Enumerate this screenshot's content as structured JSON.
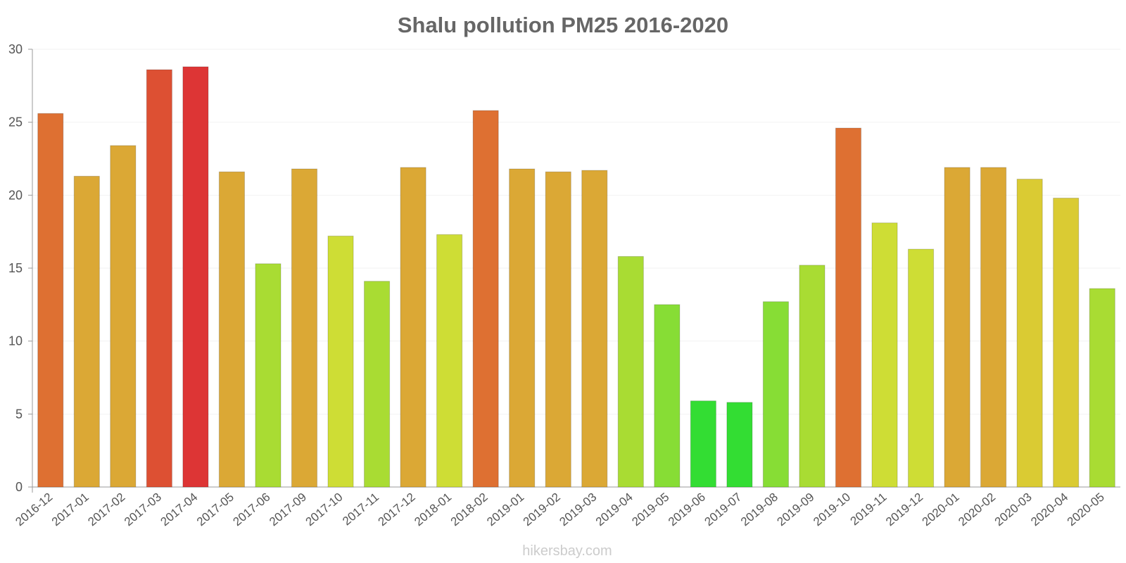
{
  "chart_data": {
    "type": "bar",
    "title": "Shalu pollution PM25 2016-2020",
    "xlabel": "",
    "ylabel": "",
    "ylim": [
      0,
      30
    ],
    "yticks": [
      0,
      5,
      10,
      15,
      20,
      25,
      30
    ],
    "categories": [
      "2016-12",
      "2017-01",
      "2017-02",
      "2017-03",
      "2017-04",
      "2017-05",
      "2017-06",
      "2017-09",
      "2017-10",
      "2017-11",
      "2017-12",
      "2018-01",
      "2018-02",
      "2019-01",
      "2019-02",
      "2019-03",
      "2019-04",
      "2019-05",
      "2019-06",
      "2019-07",
      "2019-08",
      "2019-09",
      "2019-10",
      "2019-11",
      "2019-12",
      "2020-01",
      "2020-02",
      "2020-03",
      "2020-04",
      "2020-05"
    ],
    "values": [
      25.6,
      21.3,
      23.4,
      28.6,
      28.8,
      21.6,
      15.3,
      21.8,
      17.2,
      14.1,
      21.9,
      17.3,
      25.8,
      21.8,
      21.6,
      21.7,
      15.8,
      12.5,
      5.9,
      5.8,
      12.7,
      15.2,
      24.6,
      18.1,
      16.3,
      21.9,
      21.9,
      21.1,
      19.8,
      13.6
    ],
    "bar_colors": [
      "#de7032",
      "#dba835",
      "#dba835",
      "#dd5033",
      "#dd3535",
      "#dba835",
      "#a9dc33",
      "#dba835",
      "#cedd35",
      "#a9dc33",
      "#dba835",
      "#cedd35",
      "#de7032",
      "#dba835",
      "#dba835",
      "#dba835",
      "#a9dc33",
      "#87dd35",
      "#33dd33",
      "#33dd33",
      "#87dd35",
      "#a9dc33",
      "#de7032",
      "#cedd35",
      "#cedd35",
      "#dba835",
      "#dba835",
      "#dacb33",
      "#dacb33",
      "#a9dc33"
    ],
    "grid": true,
    "legend": "none"
  },
  "watermark": "hikersbay.com"
}
